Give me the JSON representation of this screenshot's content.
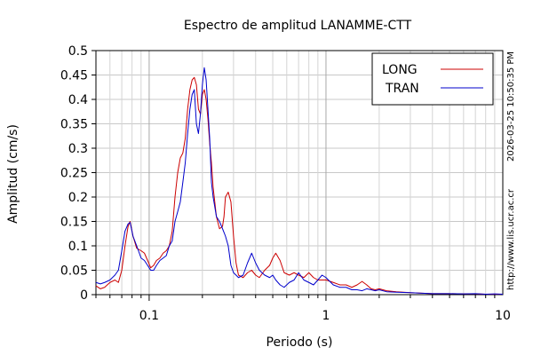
{
  "chart_data": {
    "type": "line",
    "title": "Espectro de amplitud LANAMME-CTT",
    "xlabel": "Periodo (s)",
    "ylabel": "Amplitud (cm/s)",
    "xscale": "log",
    "xlim": [
      0.05,
      10
    ],
    "ylim": [
      0,
      0.5
    ],
    "x_ticks": [
      {
        "value": 0.1,
        "label": "0.1"
      },
      {
        "value": 1,
        "label": "1"
      },
      {
        "value": 10,
        "label": "10"
      }
    ],
    "y_ticks": [
      {
        "value": 0,
        "label": "0"
      },
      {
        "value": 0.05,
        "label": "0.05"
      },
      {
        "value": 0.1,
        "label": "0.1"
      },
      {
        "value": 0.15,
        "label": "0.15"
      },
      {
        "value": 0.2,
        "label": "0.2"
      },
      {
        "value": 0.25,
        "label": "0.25"
      },
      {
        "value": 0.3,
        "label": "0.3"
      },
      {
        "value": 0.35,
        "label": "0.35"
      },
      {
        "value": 0.4,
        "label": "0.4"
      },
      {
        "value": 0.45,
        "label": "0.45"
      },
      {
        "value": 0.5,
        "label": "0.5"
      }
    ],
    "grid": true,
    "legend_position": "top-right",
    "series": [
      {
        "name": "LONG",
        "color": "#cc0000",
        "points": [
          [
            0.05,
            0.018
          ],
          [
            0.053,
            0.012
          ],
          [
            0.056,
            0.015
          ],
          [
            0.06,
            0.025
          ],
          [
            0.064,
            0.03
          ],
          [
            0.067,
            0.025
          ],
          [
            0.07,
            0.05
          ],
          [
            0.073,
            0.1
          ],
          [
            0.076,
            0.14
          ],
          [
            0.078,
            0.15
          ],
          [
            0.081,
            0.12
          ],
          [
            0.085,
            0.095
          ],
          [
            0.09,
            0.09
          ],
          [
            0.094,
            0.085
          ],
          [
            0.098,
            0.07
          ],
          [
            0.102,
            0.055
          ],
          [
            0.106,
            0.06
          ],
          [
            0.11,
            0.07
          ],
          [
            0.115,
            0.075
          ],
          [
            0.12,
            0.085
          ],
          [
            0.125,
            0.09
          ],
          [
            0.13,
            0.1
          ],
          [
            0.135,
            0.13
          ],
          [
            0.14,
            0.2
          ],
          [
            0.145,
            0.25
          ],
          [
            0.15,
            0.28
          ],
          [
            0.155,
            0.29
          ],
          [
            0.16,
            0.32
          ],
          [
            0.165,
            0.38
          ],
          [
            0.17,
            0.42
          ],
          [
            0.175,
            0.44
          ],
          [
            0.18,
            0.445
          ],
          [
            0.185,
            0.43
          ],
          [
            0.19,
            0.38
          ],
          [
            0.195,
            0.37
          ],
          [
            0.2,
            0.41
          ],
          [
            0.205,
            0.42
          ],
          [
            0.21,
            0.4
          ],
          [
            0.215,
            0.36
          ],
          [
            0.22,
            0.31
          ],
          [
            0.225,
            0.27
          ],
          [
            0.23,
            0.22
          ],
          [
            0.235,
            0.19
          ],
          [
            0.24,
            0.16
          ],
          [
            0.25,
            0.135
          ],
          [
            0.26,
            0.14
          ],
          [
            0.265,
            0.16
          ],
          [
            0.27,
            0.2
          ],
          [
            0.28,
            0.21
          ],
          [
            0.29,
            0.19
          ],
          [
            0.3,
            0.12
          ],
          [
            0.31,
            0.065
          ],
          [
            0.32,
            0.04
          ],
          [
            0.34,
            0.035
          ],
          [
            0.36,
            0.045
          ],
          [
            0.38,
            0.05
          ],
          [
            0.4,
            0.04
          ],
          [
            0.42,
            0.035
          ],
          [
            0.45,
            0.05
          ],
          [
            0.48,
            0.06
          ],
          [
            0.5,
            0.075
          ],
          [
            0.52,
            0.085
          ],
          [
            0.55,
            0.07
          ],
          [
            0.58,
            0.045
          ],
          [
            0.62,
            0.04
          ],
          [
            0.66,
            0.045
          ],
          [
            0.7,
            0.04
          ],
          [
            0.75,
            0.035
          ],
          [
            0.8,
            0.045
          ],
          [
            0.85,
            0.035
          ],
          [
            0.9,
            0.03
          ],
          [
            0.95,
            0.03
          ],
          [
            1,
            0.03
          ],
          [
            1.1,
            0.025
          ],
          [
            1.2,
            0.02
          ],
          [
            1.3,
            0.02
          ],
          [
            1.4,
            0.015
          ],
          [
            1.5,
            0.02
          ],
          [
            1.6,
            0.027
          ],
          [
            1.7,
            0.02
          ],
          [
            1.8,
            0.012
          ],
          [
            1.9,
            0.01
          ],
          [
            2,
            0.012
          ],
          [
            2.2,
            0.008
          ],
          [
            2.5,
            0.006
          ],
          [
            3,
            0.004
          ],
          [
            3.5,
            0.003
          ],
          [
            4,
            0.002
          ],
          [
            5,
            0.002
          ],
          [
            6,
            0.0015
          ],
          [
            7,
            0.0015
          ],
          [
            8,
            0.001
          ],
          [
            9,
            0.001
          ],
          [
            10,
            0.001
          ]
        ]
      },
      {
        "name": "TRAN",
        "color": "#0000cc",
        "points": [
          [
            0.05,
            0.025
          ],
          [
            0.053,
            0.022
          ],
          [
            0.056,
            0.025
          ],
          [
            0.06,
            0.03
          ],
          [
            0.064,
            0.04
          ],
          [
            0.067,
            0.05
          ],
          [
            0.07,
            0.09
          ],
          [
            0.073,
            0.13
          ],
          [
            0.076,
            0.145
          ],
          [
            0.078,
            0.148
          ],
          [
            0.081,
            0.12
          ],
          [
            0.085,
            0.1
          ],
          [
            0.09,
            0.075
          ],
          [
            0.094,
            0.07
          ],
          [
            0.098,
            0.06
          ],
          [
            0.102,
            0.05
          ],
          [
            0.106,
            0.05
          ],
          [
            0.11,
            0.06
          ],
          [
            0.115,
            0.07
          ],
          [
            0.12,
            0.075
          ],
          [
            0.125,
            0.08
          ],
          [
            0.13,
            0.1
          ],
          [
            0.135,
            0.11
          ],
          [
            0.14,
            0.15
          ],
          [
            0.145,
            0.17
          ],
          [
            0.15,
            0.19
          ],
          [
            0.155,
            0.23
          ],
          [
            0.16,
            0.27
          ],
          [
            0.165,
            0.33
          ],
          [
            0.17,
            0.38
          ],
          [
            0.175,
            0.41
          ],
          [
            0.18,
            0.42
          ],
          [
            0.185,
            0.35
          ],
          [
            0.19,
            0.33
          ],
          [
            0.195,
            0.37
          ],
          [
            0.2,
            0.43
          ],
          [
            0.205,
            0.465
          ],
          [
            0.21,
            0.44
          ],
          [
            0.215,
            0.38
          ],
          [
            0.22,
            0.32
          ],
          [
            0.225,
            0.23
          ],
          [
            0.23,
            0.2
          ],
          [
            0.235,
            0.18
          ],
          [
            0.24,
            0.16
          ],
          [
            0.25,
            0.15
          ],
          [
            0.26,
            0.135
          ],
          [
            0.27,
            0.12
          ],
          [
            0.28,
            0.1
          ],
          [
            0.29,
            0.06
          ],
          [
            0.3,
            0.045
          ],
          [
            0.31,
            0.04
          ],
          [
            0.32,
            0.035
          ],
          [
            0.34,
            0.04
          ],
          [
            0.36,
            0.065
          ],
          [
            0.38,
            0.085
          ],
          [
            0.4,
            0.065
          ],
          [
            0.42,
            0.05
          ],
          [
            0.45,
            0.04
          ],
          [
            0.48,
            0.035
          ],
          [
            0.5,
            0.04
          ],
          [
            0.52,
            0.03
          ],
          [
            0.55,
            0.02
          ],
          [
            0.58,
            0.015
          ],
          [
            0.62,
            0.025
          ],
          [
            0.66,
            0.03
          ],
          [
            0.7,
            0.045
          ],
          [
            0.75,
            0.03
          ],
          [
            0.8,
            0.025
          ],
          [
            0.85,
            0.02
          ],
          [
            0.9,
            0.03
          ],
          [
            0.95,
            0.04
          ],
          [
            1,
            0.035
          ],
          [
            1.1,
            0.02
          ],
          [
            1.2,
            0.015
          ],
          [
            1.3,
            0.015
          ],
          [
            1.4,
            0.01
          ],
          [
            1.5,
            0.01
          ],
          [
            1.6,
            0.008
          ],
          [
            1.7,
            0.012
          ],
          [
            1.8,
            0.01
          ],
          [
            1.9,
            0.008
          ],
          [
            2,
            0.01
          ],
          [
            2.2,
            0.006
          ],
          [
            2.5,
            0.005
          ],
          [
            3,
            0.004
          ],
          [
            3.5,
            0.003
          ],
          [
            4,
            0.002
          ],
          [
            5,
            0.002
          ],
          [
            6,
            0.0015
          ],
          [
            7,
            0.002
          ],
          [
            8,
            0.001
          ],
          [
            9,
            0.0015
          ],
          [
            10,
            0.001
          ]
        ]
      }
    ]
  },
  "side_labels": {
    "timestamp": "2026-03-25 10:50:35 PM",
    "website": "http://www.lis.ucr.ac.cr"
  }
}
